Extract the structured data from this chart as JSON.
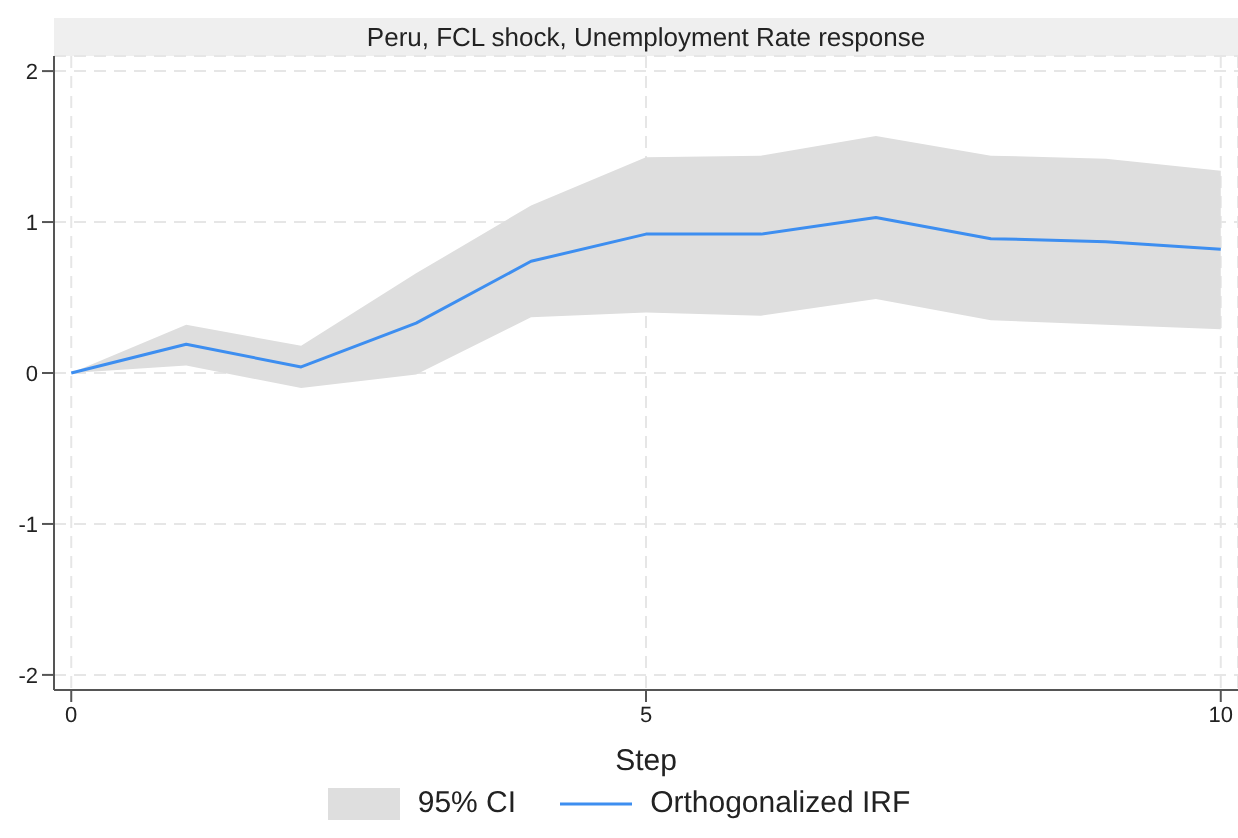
{
  "chart_data": {
    "type": "line",
    "title": "Peru, FCL shock, Unemployment Rate response",
    "xlabel": "Step",
    "x": [
      0,
      1,
      2,
      3,
      4,
      5,
      6,
      7,
      8,
      9,
      10
    ],
    "series": [
      {
        "name": "Orthogonalized IRF",
        "color": "#3d8ef0",
        "values": [
          0,
          0.19,
          0.04,
          0.33,
          0.74,
          0.92,
          0.92,
          1.03,
          0.89,
          0.87,
          0.82
        ],
        "lower": [
          0,
          0.05,
          -0.1,
          -0.01,
          0.37,
          0.4,
          0.38,
          0.49,
          0.35,
          0.32,
          0.29
        ],
        "upper": [
          0,
          0.32,
          0.18,
          0.66,
          1.11,
          1.43,
          1.44,
          1.57,
          1.44,
          1.42,
          1.34
        ]
      }
    ],
    "annotations": [
      "95% CI"
    ],
    "xlim": [
      -0.15,
      10.15
    ],
    "xticks": [
      0,
      5,
      10
    ],
    "ylim": [
      -2.1,
      2.1
    ],
    "yticks": [
      -2,
      -1,
      0,
      1,
      2
    ],
    "grid": true,
    "legend": "bottom",
    "marker": "none",
    "line_style": "solid"
  }
}
